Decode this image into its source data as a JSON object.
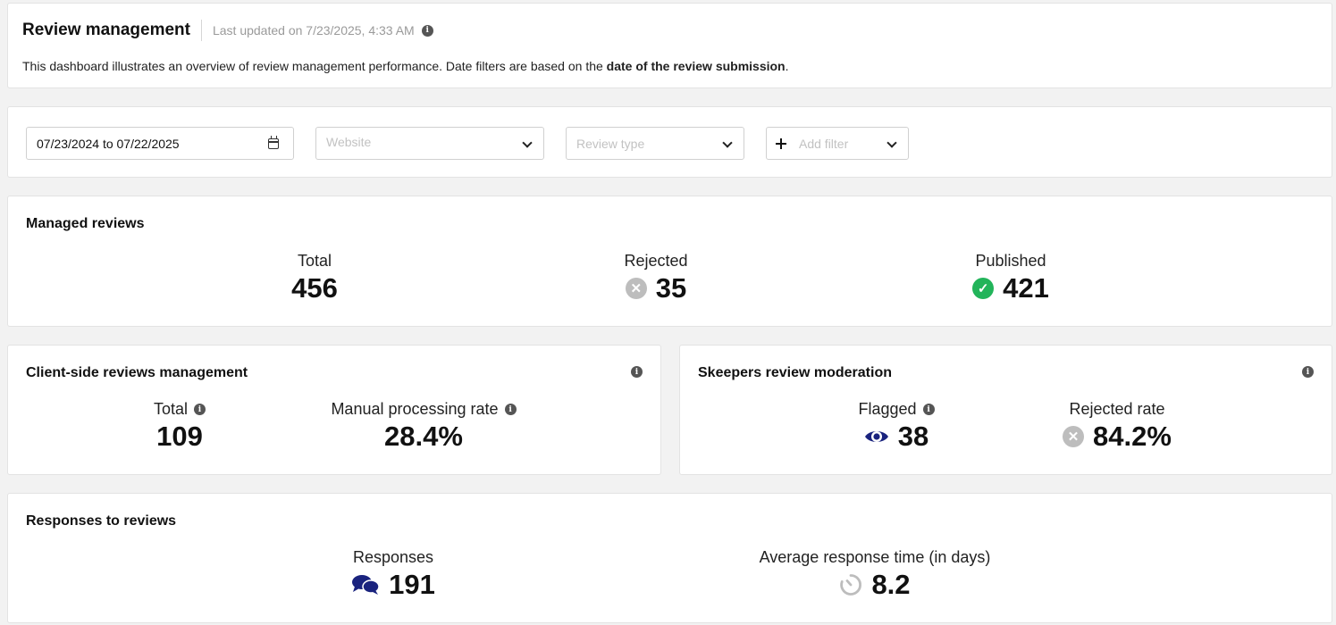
{
  "header": {
    "title": "Review management",
    "last_updated": "Last updated on 7/23/2025, 4:33 AM",
    "description_prefix": "This dashboard illustrates an overview of review management performance. Date filters are based on the ",
    "description_bold": "date of the review submission",
    "description_suffix": "."
  },
  "filters": {
    "date_range": "07/23/2024 to 07/22/2025",
    "website_placeholder": "Website",
    "review_type_placeholder": "Review type",
    "add_filter_label": "Add filter"
  },
  "managed_reviews": {
    "title": "Managed reviews",
    "total_label": "Total",
    "total_value": "456",
    "rejected_label": "Rejected",
    "rejected_value": "35",
    "published_label": "Published",
    "published_value": "421"
  },
  "client_side": {
    "title": "Client-side reviews management",
    "total_label": "Total",
    "total_value": "109",
    "manual_rate_label": "Manual processing rate",
    "manual_rate_value": "28.4%"
  },
  "skeepers_moderation": {
    "title": "Skeepers review moderation",
    "flagged_label": "Flagged",
    "flagged_value": "38",
    "rejected_rate_label": "Rejected rate",
    "rejected_rate_value": "84.2%"
  },
  "responses": {
    "title": "Responses to reviews",
    "responses_label": "Responses",
    "responses_value": "191",
    "avg_time_label": "Average response time (in days)",
    "avg_time_value": "8.2"
  },
  "icons": {
    "info": "info-icon",
    "rejected": "x-circle-icon",
    "published": "check-circle-icon",
    "flagged": "eye-icon",
    "responses": "chat-bubbles-icon",
    "avg_time": "timer-icon",
    "date": "calendar-icon",
    "dropdown": "chevron-down-icon",
    "add": "plus-icon"
  },
  "colors": {
    "published_green": "#22b45a",
    "rejected_gray": "#bdbdbd",
    "icon_navy": "#1a237e",
    "placeholder_gray": "#c2c2c2"
  }
}
